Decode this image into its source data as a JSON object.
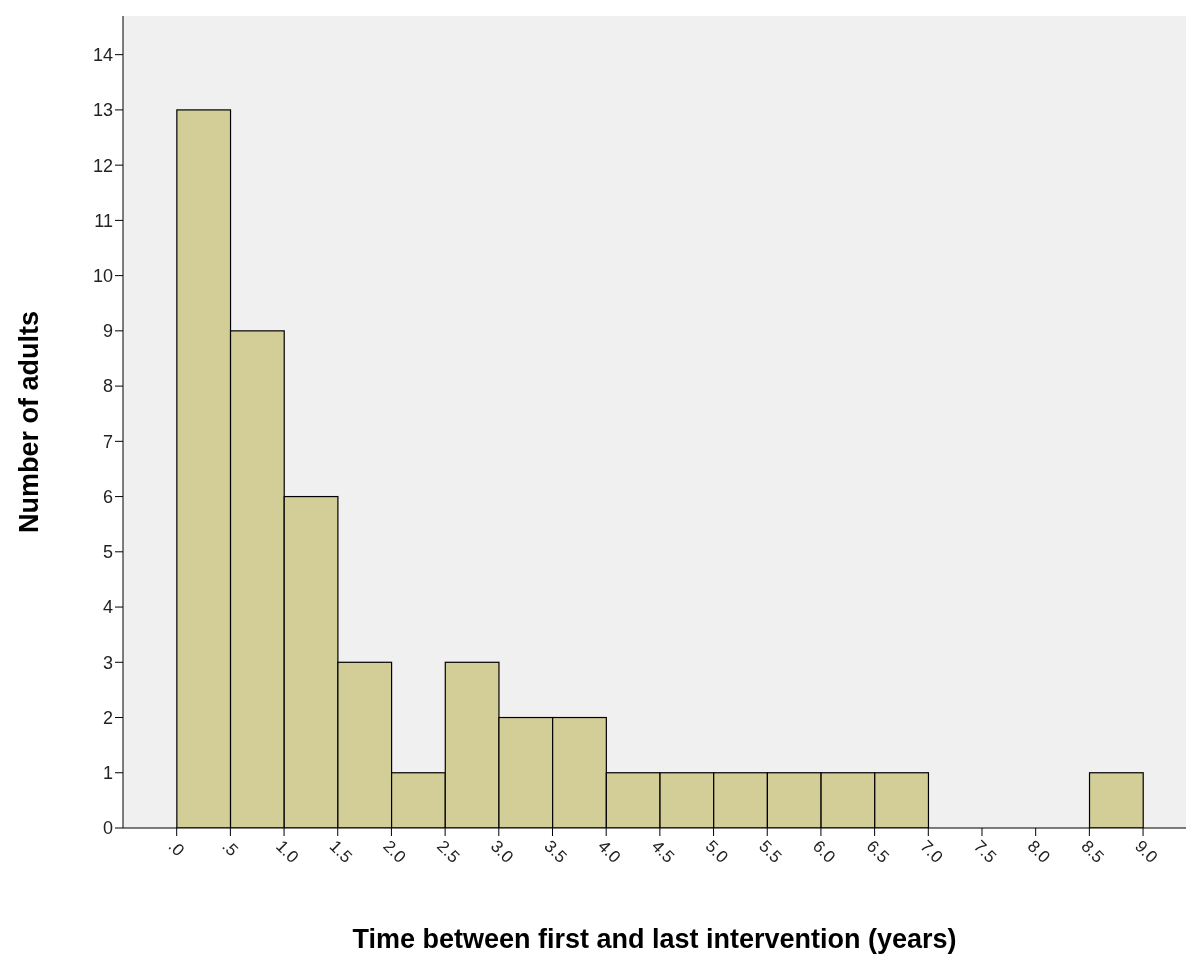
{
  "chart_data": {
    "type": "histogram",
    "xlabel": "Time between first and last intervention (years)",
    "ylabel": "Number of adults",
    "bins": [
      0,
      0.5,
      1,
      1.5,
      2,
      2.5,
      3,
      3.5,
      4,
      4.5,
      5,
      5.5,
      6,
      6.5,
      7,
      7.5,
      8,
      8.5,
      9
    ],
    "values": [
      13,
      9,
      6,
      3,
      1,
      3,
      2,
      2,
      1,
      1,
      1,
      1,
      1,
      1,
      0,
      0,
      0,
      1
    ],
    "color": "#d3ce97",
    "xlim": [
      -0.5,
      9.4
    ],
    "xticks": [
      {
        "value": 0,
        "label": ".0"
      },
      {
        "value": 0.5,
        "label": ".5"
      },
      {
        "value": 1,
        "label": "1.0"
      },
      {
        "value": 1.5,
        "label": "1.5"
      },
      {
        "value": 2,
        "label": "2.0"
      },
      {
        "value": 2.5,
        "label": "2.5"
      },
      {
        "value": 3,
        "label": "3.0"
      },
      {
        "value": 3.5,
        "label": "3.5"
      },
      {
        "value": 4,
        "label": "4.0"
      },
      {
        "value": 4.5,
        "label": "4.5"
      },
      {
        "value": 5,
        "label": "5.0"
      },
      {
        "value": 5.5,
        "label": "5.5"
      },
      {
        "value": 6,
        "label": "6.0"
      },
      {
        "value": 6.5,
        "label": "6.5"
      },
      {
        "value": 7,
        "label": "7.0"
      },
      {
        "value": 7.5,
        "label": "7.5"
      },
      {
        "value": 8,
        "label": "8.0"
      },
      {
        "value": 8.5,
        "label": "8.5"
      },
      {
        "value": 9,
        "label": "9.0"
      }
    ],
    "ylim": [
      0,
      14.7
    ],
    "yticks": [
      0,
      1,
      2,
      3,
      4,
      5,
      6,
      7,
      8,
      9,
      10,
      11,
      12,
      13,
      14
    ]
  }
}
